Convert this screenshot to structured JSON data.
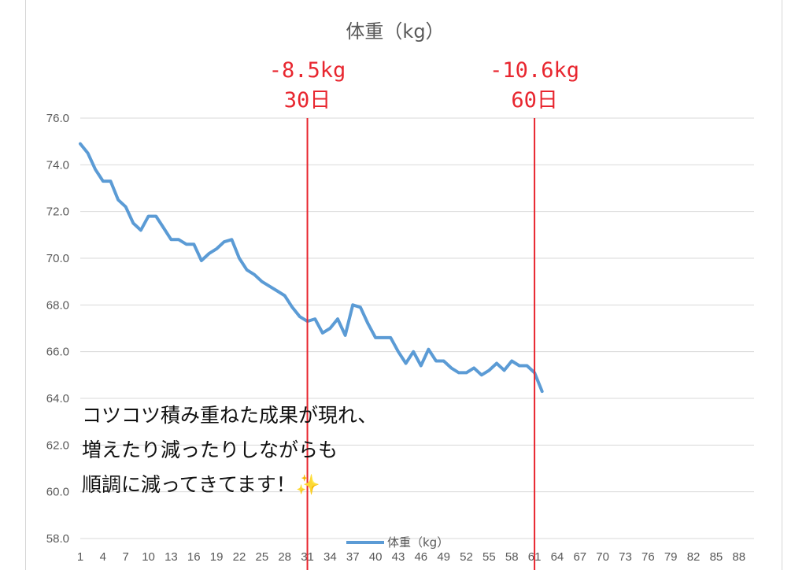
{
  "chart_data": {
    "type": "line",
    "title": "体重（kg）",
    "ylim": [
      58,
      76
    ],
    "yticks": [
      "76.0",
      "74.0",
      "72.0",
      "70.0",
      "68.0",
      "66.0",
      "64.0",
      "62.0",
      "60.0",
      "58.0"
    ],
    "xticks": [
      "1",
      "4",
      "7",
      "10",
      "13",
      "16",
      "19",
      "22",
      "25",
      "28",
      "31",
      "34",
      "37",
      "40",
      "43",
      "46",
      "49",
      "52",
      "55",
      "58",
      "61",
      "64",
      "67",
      "70",
      "73",
      "76",
      "79",
      "82",
      "85",
      "88"
    ],
    "x_range": [
      1,
      90
    ],
    "grid": true,
    "legend_position": "bottom",
    "series": [
      {
        "name": "体重（kg）",
        "color": "#5b9bd5",
        "values": [
          74.9,
          74.5,
          73.8,
          73.3,
          73.3,
          72.5,
          72.2,
          71.5,
          71.2,
          71.8,
          71.8,
          71.3,
          70.8,
          70.8,
          70.6,
          70.6,
          69.9,
          70.2,
          70.4,
          70.7,
          70.8,
          70.0,
          69.5,
          69.3,
          69.0,
          68.8,
          68.6,
          68.4,
          67.9,
          67.5,
          67.3,
          67.4,
          66.8,
          67.0,
          67.4,
          66.7,
          68.0,
          67.9,
          67.2,
          66.6,
          66.6,
          66.6,
          66.0,
          65.5,
          66.0,
          65.4,
          66.1,
          65.6,
          65.6,
          65.3,
          65.1,
          65.1,
          65.3,
          65.0,
          65.2,
          65.5,
          65.2,
          65.6,
          65.4,
          65.4,
          65.1,
          64.3
        ]
      }
    ],
    "annotations": [
      {
        "x": 31,
        "line1": "-8.5kg",
        "line2": "30日",
        "color": "#e8262f"
      },
      {
        "x": 61,
        "line1": "-10.6kg",
        "line2": "60日",
        "color": "#e8262f"
      }
    ]
  },
  "caption": {
    "line1": "コツコツ積み重ねた成果が現れ、",
    "line2": "増えたり減ったりしながらも",
    "line3": "順調に減ってきてます！✨"
  }
}
